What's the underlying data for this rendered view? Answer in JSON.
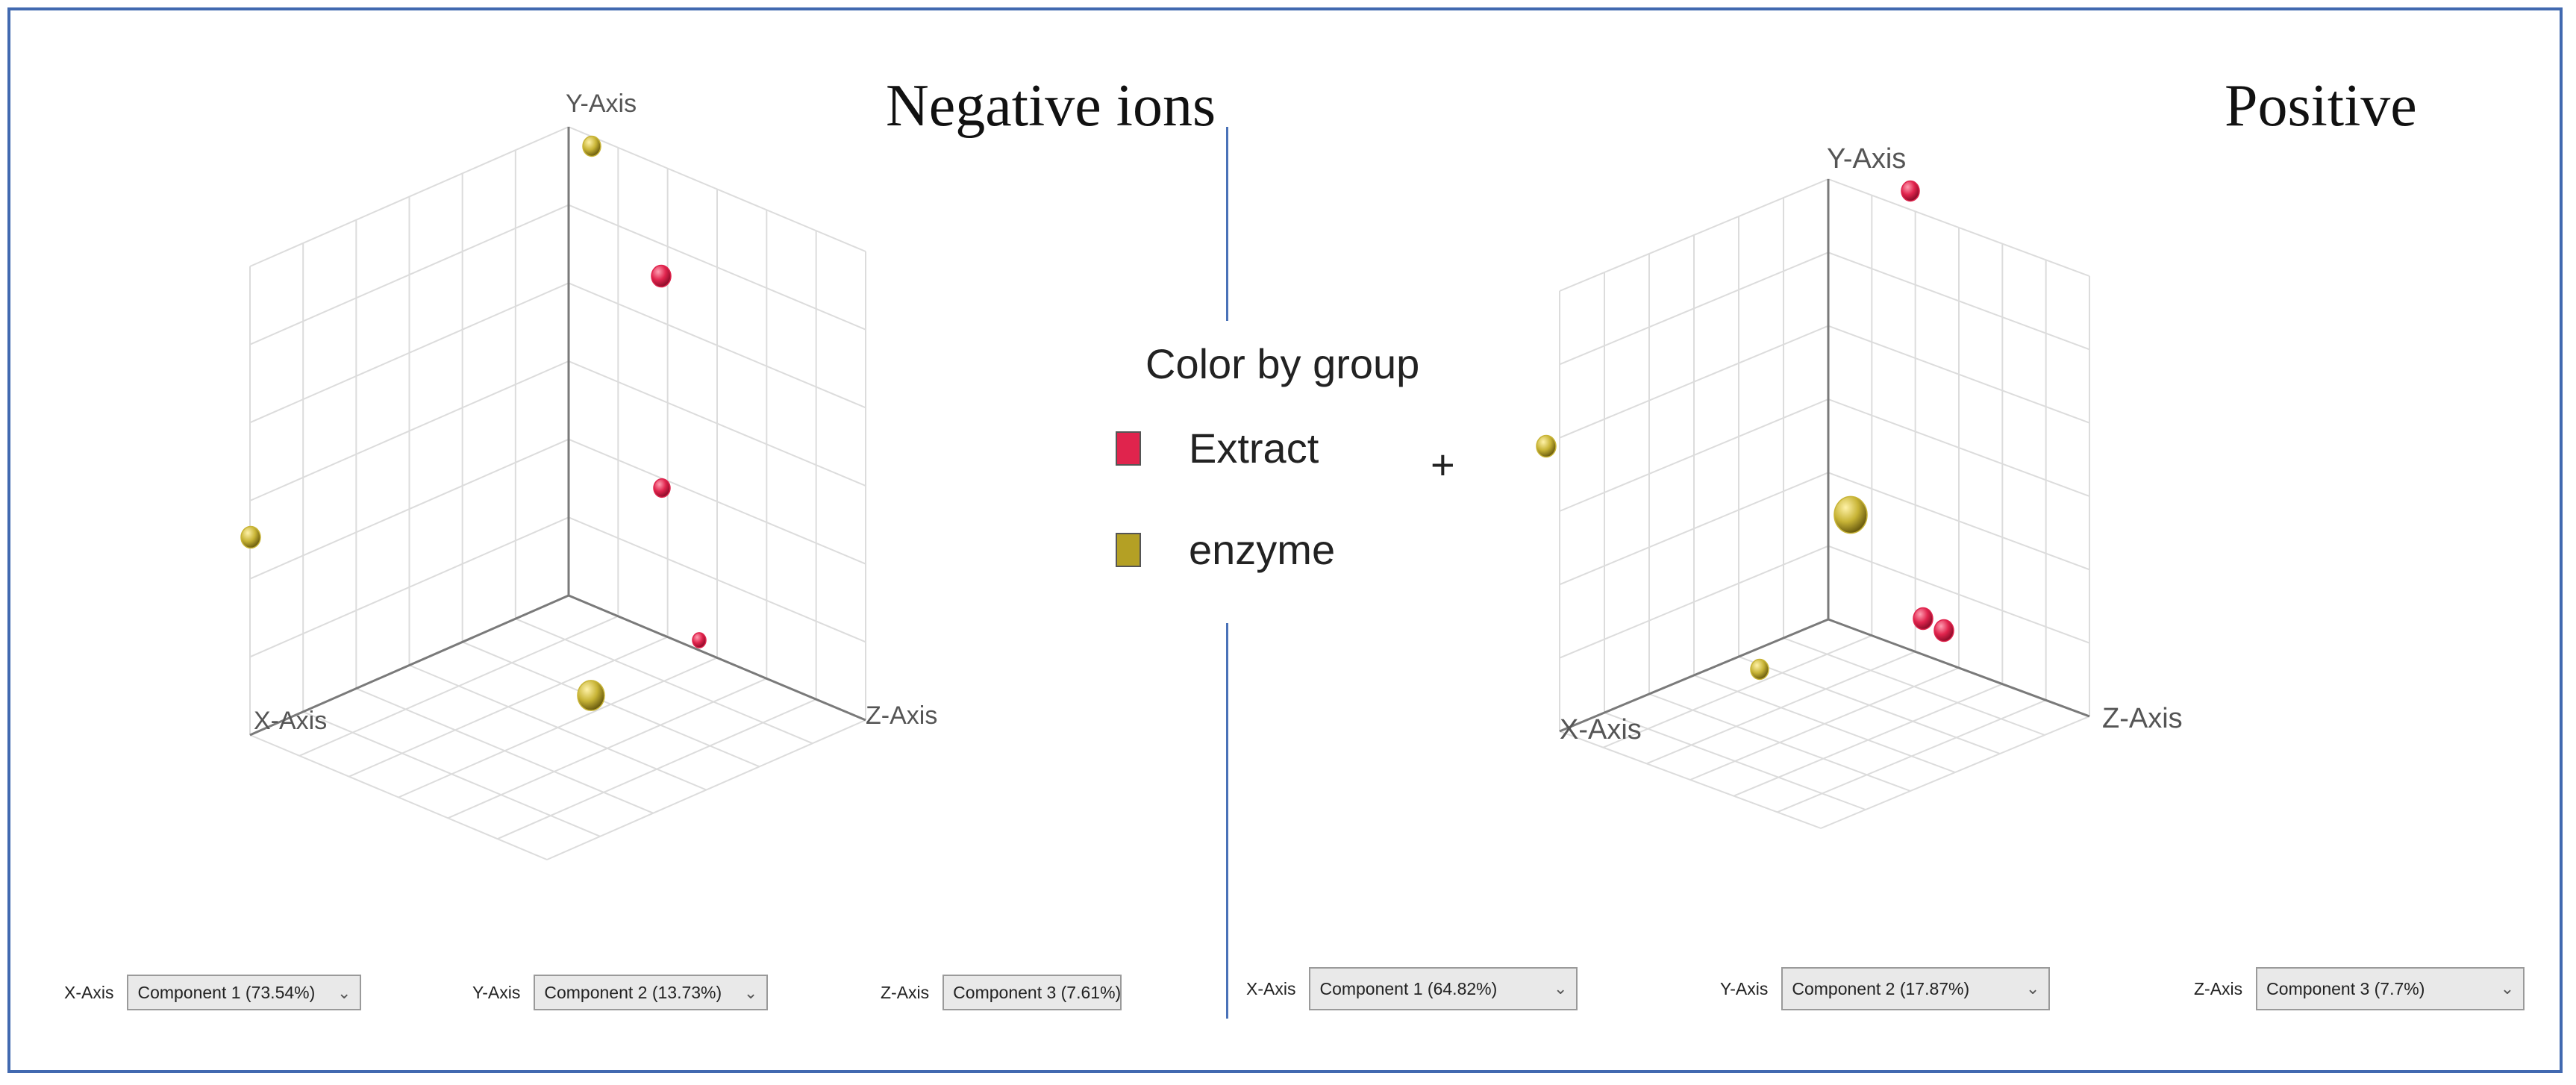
{
  "chart_data": [
    {
      "type": "scatter3d",
      "title": "Negative ions",
      "axes": {
        "x": "X-Axis",
        "y": "Y-Axis",
        "z": "Z-Axis"
      },
      "grid": true,
      "groups": [
        "Extract",
        "Extract",
        "Extract",
        "enzyme",
        "enzyme",
        "enzyme"
      ],
      "points": [
        {
          "group": "enzyme",
          "color": "#c8b436"
        },
        {
          "group": "Extract",
          "color": "#e0244d"
        },
        {
          "group": "Extract",
          "color": "#e0244d"
        },
        {
          "group": "enzyme",
          "color": "#c8b436"
        },
        {
          "group": "Extract",
          "color": "#e0244d"
        },
        {
          "group": "enzyme",
          "color": "#c8b436"
        }
      ],
      "controls": [
        {
          "label": "X-Axis",
          "value": "Component 1 (73.54%)"
        },
        {
          "label": "Y-Axis",
          "value": "Component 2 (13.73%)"
        },
        {
          "label": "Z-Axis",
          "value": "Component 3 (7.61%)"
        }
      ]
    },
    {
      "type": "scatter3d",
      "title": "Positive",
      "axes": {
        "x": "X-Axis",
        "y": "Y-Axis",
        "z": "Z-Axis"
      },
      "grid": true,
      "points": [
        {
          "group": "Extract",
          "color": "#e0244d"
        },
        {
          "group": "enzyme",
          "color": "#c8b436"
        },
        {
          "group": "enzyme",
          "color": "#c8b436"
        },
        {
          "group": "Extract",
          "color": "#e0244d"
        },
        {
          "group": "Extract",
          "color": "#e0244d"
        },
        {
          "group": "enzyme",
          "color": "#c8b436"
        }
      ],
      "controls": [
        {
          "label": "X-Axis",
          "value": "Component 1 (64.82%)"
        },
        {
          "label": "Y-Axis",
          "value": "Component 2 (17.87%)"
        },
        {
          "label": "Z-Axis",
          "value": "Component 3 (7.7%)"
        }
      ]
    }
  ],
  "legend": {
    "title": "Color by group",
    "items": [
      {
        "label": "Extract",
        "color": "#e0244d"
      },
      {
        "label": "enzyme",
        "color": "#c8b436"
      }
    ],
    "plus": "+"
  }
}
